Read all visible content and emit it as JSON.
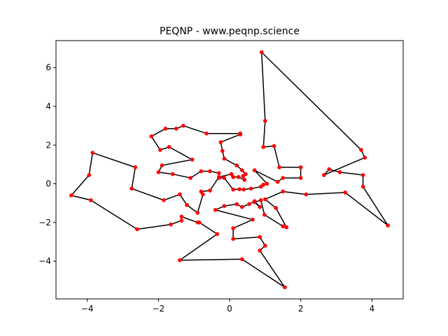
{
  "chart_data": {
    "type": "scatter",
    "title": "PEQNP - www.peqnp.science",
    "xlabel": "",
    "ylabel": "",
    "xlim": [
      -4.88,
      4.88
    ],
    "ylim": [
      -5.95,
      7.4
    ],
    "grid": false,
    "legend": "none",
    "x_ticks": [
      -4,
      -2,
      0,
      2,
      4
    ],
    "y_ticks": [
      -4,
      -2,
      0,
      2,
      4,
      6
    ],
    "x_tick_labels": [
      "−4",
      "−2",
      "0",
      "2",
      "4"
    ],
    "y_tick_labels": [
      "−4",
      "−2",
      "0",
      "2",
      "4",
      "6"
    ],
    "line_color": "#000000",
    "marker_color": "#ff0000",
    "closed_path": true,
    "points": [
      [
        0.9,
        6.8
      ],
      [
        1.0,
        3.25
      ],
      [
        0.95,
        1.9
      ],
      [
        1.25,
        1.95
      ],
      [
        1.4,
        0.85
      ],
      [
        2.0,
        0.85
      ],
      [
        2.0,
        0.3
      ],
      [
        1.5,
        0.3
      ],
      [
        1.35,
        0.1
      ],
      [
        0.7,
        0.7
      ],
      [
        1.05,
        0.0
      ],
      [
        0.95,
        -0.05
      ],
      [
        0.88,
        -0.15
      ],
      [
        0.6,
        -0.25
      ],
      [
        0.4,
        -0.3
      ],
      [
        0.28,
        -0.28
      ],
      [
        0.1,
        -0.3
      ],
      [
        -0.15,
        0.3
      ],
      [
        -0.3,
        0.3
      ],
      [
        -0.3,
        0.55
      ],
      [
        -0.55,
        0.65
      ],
      [
        -0.8,
        0.65
      ],
      [
        -1.1,
        0.3
      ],
      [
        -1.6,
        0.5
      ],
      [
        -2.0,
        0.6
      ],
      [
        -1.9,
        0.95
      ],
      [
        -1.05,
        1.25
      ],
      [
        -1.7,
        1.9
      ],
      [
        -1.95,
        1.75
      ],
      [
        -2.2,
        2.45
      ],
      [
        -1.8,
        2.85
      ],
      [
        -1.5,
        2.85
      ],
      [
        -1.3,
        3.0
      ],
      [
        -0.65,
        2.6
      ],
      [
        0.3,
        2.6
      ],
      [
        0.3,
        2.55
      ],
      [
        -0.25,
        2.15
      ],
      [
        -0.2,
        1.7
      ],
      [
        -0.15,
        1.3
      ],
      [
        0.2,
        0.95
      ],
      [
        0.35,
        0.7
      ],
      [
        0.45,
        0.5
      ],
      [
        0.38,
        0.4
      ],
      [
        0.42,
        0.2
      ],
      [
        0.25,
        0.35
      ],
      [
        0.1,
        0.35
      ],
      [
        0.05,
        0.5
      ],
      [
        -0.3,
        0.35
      ],
      [
        -0.55,
        -0.35
      ],
      [
        -0.8,
        -0.4
      ],
      [
        -0.75,
        -0.55
      ],
      [
        -0.9,
        -1.5
      ],
      [
        -1.2,
        -1.1
      ],
      [
        -1.4,
        -0.55
      ],
      [
        -1.85,
        -0.85
      ],
      [
        -2.75,
        -0.25
      ],
      [
        -2.65,
        0.85
      ],
      [
        -3.85,
        1.6
      ],
      [
        -3.95,
        0.45
      ],
      [
        -4.45,
        -0.6
      ],
      [
        -3.9,
        -0.85
      ],
      [
        -2.6,
        -2.35
      ],
      [
        -1.65,
        -2.1
      ],
      [
        -1.35,
        -1.9
      ],
      [
        -1.35,
        -1.7
      ],
      [
        -0.9,
        -2.0
      ],
      [
        -0.85,
        -2.0
      ],
      [
        -0.35,
        -2.6
      ],
      [
        -1.4,
        -3.95
      ],
      [
        0.35,
        -3.9
      ],
      [
        1.55,
        -5.35
      ],
      [
        0.85,
        -3.45
      ],
      [
        1.0,
        -3.2
      ],
      [
        0.85,
        -2.75
      ],
      [
        0.1,
        -2.85
      ],
      [
        0.1,
        -2.3
      ],
      [
        0.65,
        -1.85
      ],
      [
        -0.4,
        -1.35
      ],
      [
        -0.15,
        -1.15
      ],
      [
        0.2,
        -1.05
      ],
      [
        0.35,
        -1.2
      ],
      [
        0.55,
        -1.05
      ],
      [
        0.7,
        -0.9
      ],
      [
        0.85,
        -1.2
      ],
      [
        0.7,
        -0.95
      ],
      [
        0.88,
        -0.85
      ],
      [
        0.98,
        -1.6
      ],
      [
        1.5,
        -2.2
      ],
      [
        1.6,
        -2.25
      ],
      [
        1.3,
        -1.25
      ],
      [
        1.0,
        -0.8
      ],
      [
        1.5,
        -0.4
      ],
      [
        2.15,
        -0.55
      ],
      [
        3.25,
        -0.45
      ],
      [
        4.45,
        -2.15
      ],
      [
        3.75,
        -0.15
      ],
      [
        3.75,
        0.45
      ],
      [
        3.1,
        0.6
      ],
      [
        2.8,
        0.75
      ],
      [
        2.65,
        0.45
      ],
      [
        3.8,
        1.35
      ],
      [
        3.7,
        1.75
      ]
    ]
  }
}
